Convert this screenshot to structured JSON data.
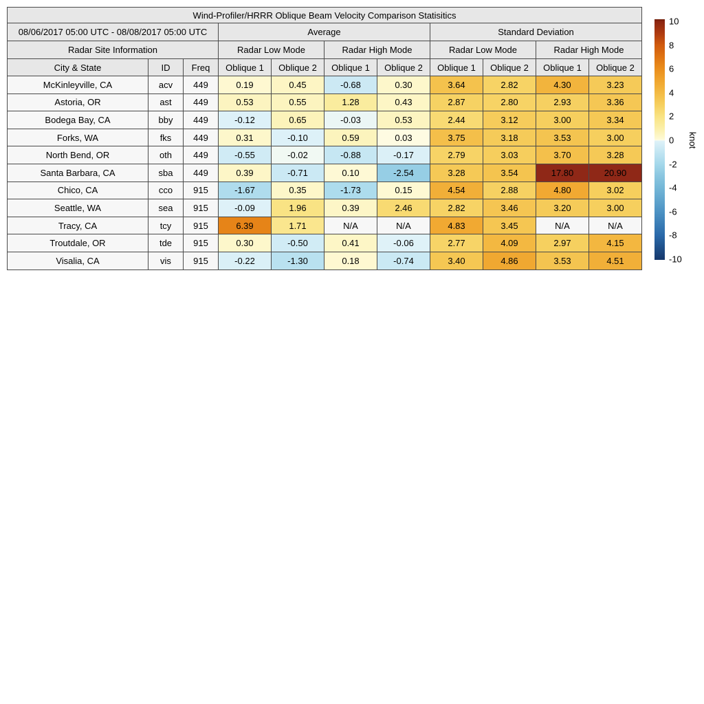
{
  "title": "Wind-Profiler/HRRR Oblique Beam Velocity Comparison Statisitics",
  "header": {
    "date_range": "08/06/2017 05:00 UTC - 08/08/2017 05:00 UTC",
    "average_label": "Average",
    "std_label": "Standard Deviation",
    "site_info_label": "Radar Site Information",
    "low_mode_label": "Radar Low Mode",
    "high_mode_label": "Radar High Mode",
    "city_label": "City & State",
    "id_label": "ID",
    "freq_label": "Freq",
    "oblique1_label": "Oblique 1",
    "oblique2_label": "Oblique 2"
  },
  "colorbar": {
    "unit_label": "knot",
    "ticks": [
      10,
      8,
      6,
      4,
      2,
      0,
      -2,
      -4,
      -6,
      -8,
      -10
    ],
    "vmin": -10,
    "vmax": 10,
    "cap_color": "#6E1E09",
    "over_color": "#8F2817",
    "na_color": "#F7F7F7",
    "anchors": [
      [
        10,
        "#8B2511"
      ],
      [
        9,
        "#AE3A10"
      ],
      [
        8,
        "#D05A0E"
      ],
      [
        7,
        "#DF7412"
      ],
      [
        6,
        "#EA8E1C"
      ],
      [
        5,
        "#F0A52E"
      ],
      [
        4,
        "#F3BA43"
      ],
      [
        3,
        "#F6CF5E"
      ],
      [
        2,
        "#F9E383"
      ],
      [
        1,
        "#FBEFA8"
      ],
      [
        0.05,
        "#FEFAD8"
      ],
      [
        0,
        "#FDFDF0"
      ],
      [
        -0.05,
        "#DFF2F8"
      ],
      [
        -1,
        "#C2E5F2"
      ],
      [
        -2,
        "#A5D8EB"
      ],
      [
        -3,
        "#8AC6E0"
      ],
      [
        -4,
        "#74B7D7"
      ],
      [
        -6,
        "#4D93C4"
      ],
      [
        -8,
        "#2A69A9"
      ],
      [
        -10,
        "#16396D"
      ]
    ]
  },
  "chart_data": {
    "type": "heatmap",
    "title": "Wind-Profiler/HRRR Oblique Beam Velocity Comparison Statisitics",
    "unit": "knot",
    "value_range": [
      -10,
      10
    ],
    "na_text": "N/A",
    "columns": [
      "Average Radar Low Mode Oblique 1",
      "Average Radar Low Mode Oblique 2",
      "Average Radar High Mode Oblique 1",
      "Average Radar High Mode Oblique 2",
      "Std Dev Radar Low Mode Oblique 1",
      "Std Dev Radar Low Mode Oblique 2",
      "Std Dev Radar High Mode Oblique 1",
      "Std Dev Radar High Mode Oblique 2"
    ],
    "rows": [
      {
        "city": "McKinleyville, CA",
        "id": "acv",
        "freq": "449",
        "values": [
          0.19,
          0.45,
          -0.68,
          0.3,
          3.64,
          2.82,
          4.3,
          3.23
        ]
      },
      {
        "city": "Astoria, OR",
        "id": "ast",
        "freq": "449",
        "values": [
          0.53,
          0.55,
          1.28,
          0.43,
          2.87,
          2.8,
          2.93,
          3.36
        ]
      },
      {
        "city": "Bodega Bay, CA",
        "id": "bby",
        "freq": "449",
        "values": [
          -0.12,
          0.65,
          -0.03,
          0.53,
          2.44,
          3.12,
          3.0,
          3.34
        ]
      },
      {
        "city": "Forks, WA",
        "id": "fks",
        "freq": "449",
        "values": [
          0.31,
          -0.1,
          0.59,
          0.03,
          3.75,
          3.18,
          3.53,
          3.0
        ]
      },
      {
        "city": "North Bend, OR",
        "id": "oth",
        "freq": "449",
        "values": [
          -0.55,
          -0.02,
          -0.88,
          -0.17,
          2.79,
          3.03,
          3.7,
          3.28
        ]
      },
      {
        "city": "Santa Barbara, CA",
        "id": "sba",
        "freq": "449",
        "values": [
          0.39,
          -0.71,
          0.1,
          -2.54,
          3.28,
          3.54,
          17.8,
          20.9
        ]
      },
      {
        "city": "Chico, CA",
        "id": "cco",
        "freq": "915",
        "values": [
          -1.67,
          0.35,
          -1.73,
          0.15,
          4.54,
          2.88,
          4.8,
          3.02
        ]
      },
      {
        "city": "Seattle, WA",
        "id": "sea",
        "freq": "915",
        "values": [
          -0.09,
          1.96,
          0.39,
          2.46,
          2.82,
          3.46,
          3.2,
          3.0
        ]
      },
      {
        "city": "Tracy, CA",
        "id": "tcy",
        "freq": "915",
        "values": [
          6.39,
          1.71,
          null,
          null,
          4.83,
          3.45,
          null,
          null
        ]
      },
      {
        "city": "Troutdale, OR",
        "id": "tde",
        "freq": "915",
        "values": [
          0.3,
          -0.5,
          0.41,
          -0.06,
          2.77,
          4.09,
          2.97,
          4.15
        ]
      },
      {
        "city": "Visalia, CA",
        "id": "vis",
        "freq": "915",
        "values": [
          -0.22,
          -1.3,
          0.18,
          -0.74,
          3.4,
          4.86,
          3.53,
          4.51
        ]
      }
    ]
  }
}
